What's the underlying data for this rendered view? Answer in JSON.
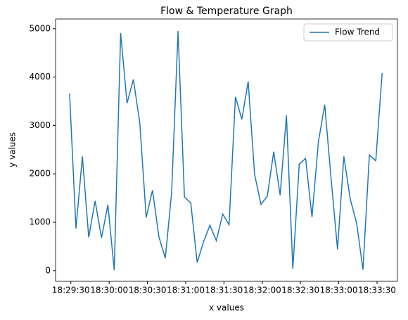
{
  "chart_data": {
    "type": "line",
    "title": "Flow & Temperature Graph",
    "xlabel": "x values",
    "ylabel": "y values",
    "x": [
      "18:29:29",
      "18:29:34",
      "18:29:39",
      "18:29:44",
      "18:29:49",
      "18:29:54",
      "18:29:59",
      "18:30:04",
      "18:30:09",
      "18:30:14",
      "18:30:19",
      "18:30:24",
      "18:30:29",
      "18:30:34",
      "18:30:39",
      "18:30:44",
      "18:30:49",
      "18:30:54",
      "18:30:59",
      "18:31:04",
      "18:31:09",
      "18:31:14",
      "18:31:19",
      "18:31:24",
      "18:31:29",
      "18:31:34",
      "18:31:39",
      "18:31:44",
      "18:31:49",
      "18:31:54",
      "18:31:59",
      "18:32:04",
      "18:32:09",
      "18:32:14",
      "18:32:19",
      "18:32:24",
      "18:32:29",
      "18:32:34",
      "18:32:39",
      "18:32:44",
      "18:32:49",
      "18:32:54",
      "18:32:59",
      "18:33:04",
      "18:33:09",
      "18:33:14",
      "18:33:19",
      "18:33:24",
      "18:33:29",
      "18:33:34"
    ],
    "series": [
      {
        "name": "Flow Trend",
        "color": "#1f77b4",
        "values": [
          3660,
          870,
          2360,
          690,
          1440,
          680,
          1360,
          10,
          4910,
          3460,
          3950,
          3060,
          1100,
          1660,
          700,
          260,
          1620,
          4950,
          1520,
          1400,
          170,
          600,
          940,
          620,
          1170,
          950,
          3590,
          3130,
          3910,
          1990,
          1370,
          1540,
          2460,
          1560,
          3210,
          40,
          2200,
          2320,
          1110,
          2660,
          3430,
          1900,
          440,
          2360,
          1480,
          980,
          20,
          2390,
          2270,
          4080
        ]
      }
    ],
    "xlim": [
      "18:29:18",
      "18:33:46"
    ],
    "xticks": [
      "18:29:30",
      "18:30:00",
      "18:30:30",
      "18:31:00",
      "18:31:30",
      "18:32:00",
      "18:32:30",
      "18:33:00",
      "18:33:30"
    ],
    "ylim": [
      -220,
      5200
    ],
    "yticks": [
      0,
      1000,
      2000,
      3000,
      4000,
      5000
    ],
    "legend": "upper right",
    "grid": false
  }
}
